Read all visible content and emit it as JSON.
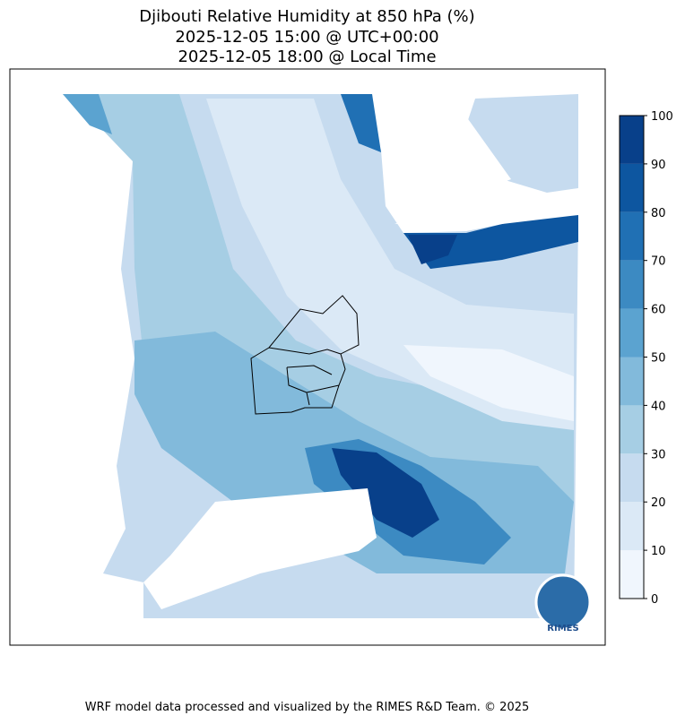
{
  "title": {
    "line1": "Djibouti Relative Humidity at 850 hPa (%)",
    "line2": "2025-12-05 15:00 @ UTC+00:00",
    "line3": "2025-12-05 18:00 @ Local Time"
  },
  "colorbar": {
    "ticks": [
      0,
      10,
      20,
      30,
      40,
      50,
      60,
      70,
      80,
      90,
      100
    ],
    "colors": [
      "#f0f6fd",
      "#dbe9f6",
      "#c6dbef",
      "#a6cee4",
      "#82badb",
      "#5ba3d0",
      "#3c8ac2",
      "#2070b4",
      "#0d56a0",
      "#08408a"
    ]
  },
  "logo": {
    "label": "RIMES"
  },
  "footer": "WRF model data processed and visualized by the RIMES R&D Team. © 2025"
}
